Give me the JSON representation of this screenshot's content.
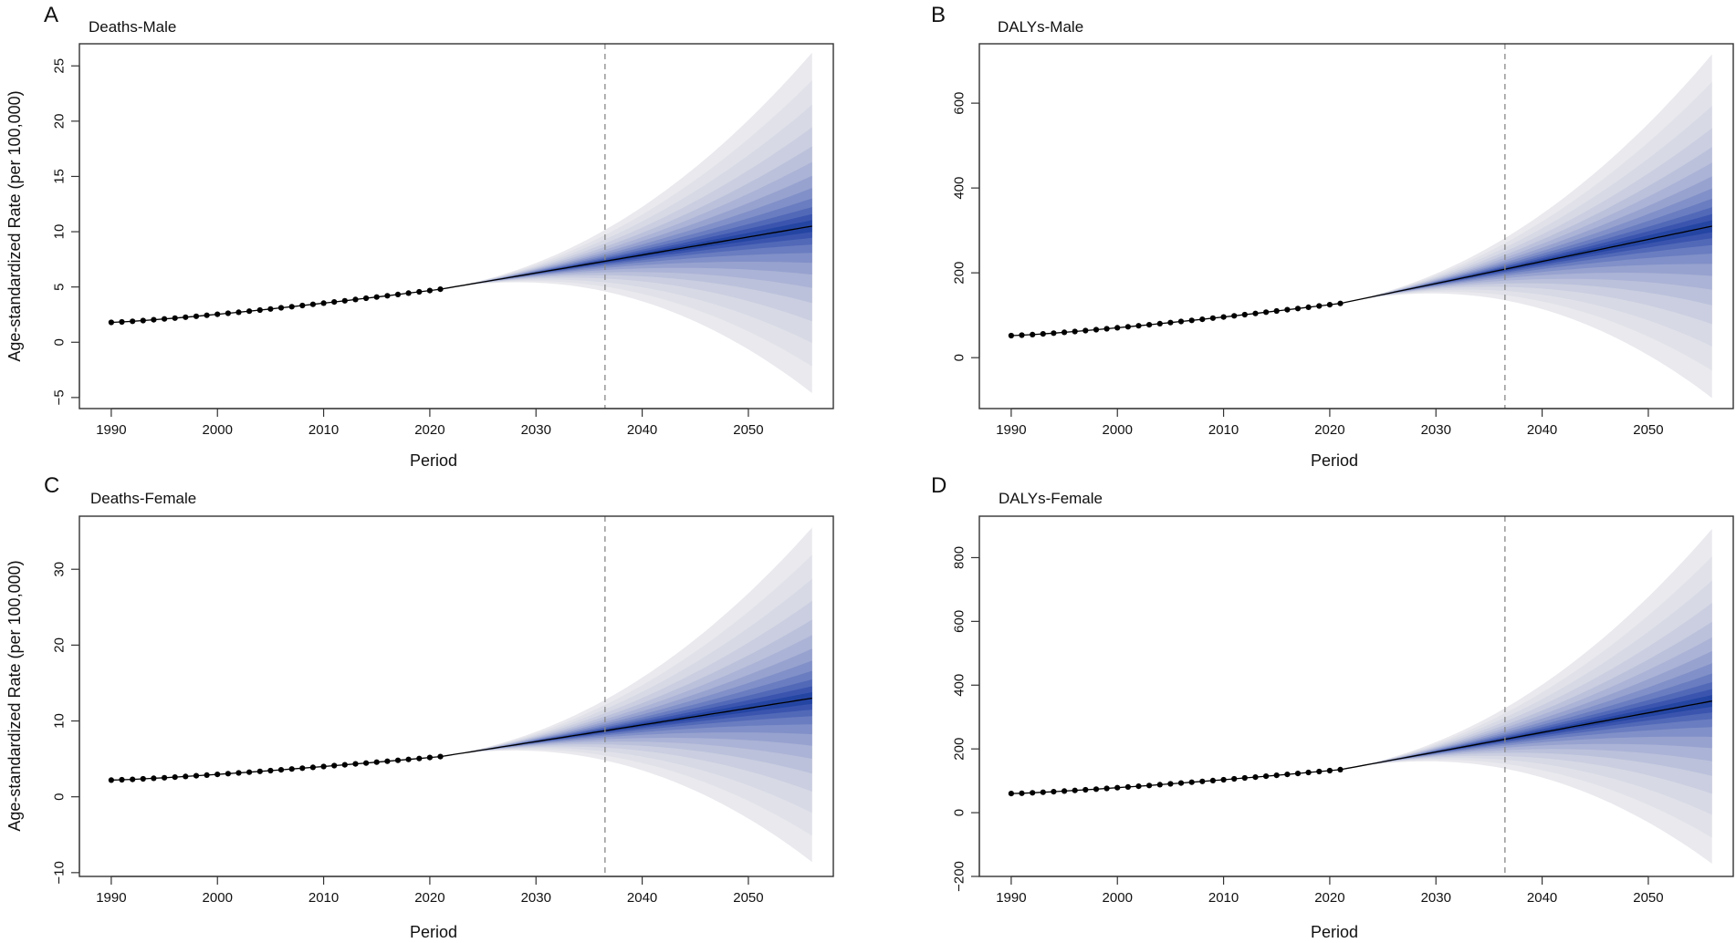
{
  "figure": {
    "x_axis_label": "Period",
    "y_axis_label": "Age-standardized Rate (per 100,000)"
  },
  "chart_data": [
    {
      "type": "line",
      "panel": "A",
      "title": "Deaths-Male",
      "xlabel": "Period",
      "ylabel": "Age-standardized Rate (per 100,000)",
      "xlim": [
        1987,
        2058
      ],
      "ylim": [
        -6,
        27
      ],
      "xticks": [
        1990,
        2000,
        2010,
        2020,
        2030,
        2040,
        2050
      ],
      "yticks": [
        -5,
        0,
        5,
        10,
        15,
        20,
        25
      ],
      "ytick_labels": [
        "−5",
        "0",
        "5",
        "10",
        "15",
        "20",
        "25"
      ],
      "observed": {
        "start_year": 1990,
        "end_year": 2021,
        "start_value": 1.8,
        "end_value": 4.8,
        "curve": 1.25
      },
      "projection": {
        "start_year": 2021,
        "end_year": 2056,
        "start_value": 4.8,
        "end_value": 10.5,
        "band_upper_end": 26.2,
        "band_lower_end": -4.6,
        "band_shape": 2.1
      },
      "vertical_line_year": 2036.5
    },
    {
      "type": "line",
      "panel": "B",
      "title": "DALYs-Male",
      "xlabel": "Period",
      "ylabel": "",
      "xlim": [
        1987,
        2058
      ],
      "ylim": [
        -120,
        740
      ],
      "xticks": [
        1990,
        2000,
        2010,
        2020,
        2030,
        2040,
        2050
      ],
      "yticks": [
        0,
        200,
        400,
        600
      ],
      "ytick_labels": [
        "0",
        "200",
        "400",
        "600"
      ],
      "observed": {
        "start_year": 1990,
        "end_year": 2021,
        "start_value": 52,
        "end_value": 128,
        "curve": 1.25
      },
      "projection": {
        "start_year": 2021,
        "end_year": 2056,
        "start_value": 128,
        "end_value": 310,
        "band_upper_end": 715,
        "band_lower_end": -95,
        "band_shape": 2.1
      },
      "vertical_line_year": 2036.5
    },
    {
      "type": "line",
      "panel": "C",
      "title": "Deaths-Female",
      "xlabel": "Period",
      "ylabel": "Age-standardized Rate (per 100,000)",
      "xlim": [
        1987,
        2058
      ],
      "ylim": [
        -10.5,
        37
      ],
      "xticks": [
        1990,
        2000,
        2010,
        2020,
        2030,
        2040,
        2050
      ],
      "yticks": [
        -10,
        0,
        10,
        20,
        30
      ],
      "ytick_labels": [
        "−10",
        "0",
        "10",
        "20",
        "30"
      ],
      "observed": {
        "start_year": 1990,
        "end_year": 2021,
        "start_value": 2.2,
        "end_value": 5.3,
        "curve": 1.25
      },
      "projection": {
        "start_year": 2021,
        "end_year": 2056,
        "start_value": 5.3,
        "end_value": 13.0,
        "band_upper_end": 35.5,
        "band_lower_end": -8.6,
        "band_shape": 2.1
      },
      "vertical_line_year": 2036.5
    },
    {
      "type": "line",
      "panel": "D",
      "title": "DALYs-Female",
      "xlabel": "Period",
      "ylabel": "",
      "xlim": [
        1987,
        2058
      ],
      "ylim": [
        -200,
        930
      ],
      "xticks": [
        1990,
        2000,
        2010,
        2020,
        2030,
        2040,
        2050
      ],
      "yticks": [
        -200,
        0,
        200,
        400,
        600,
        800
      ],
      "ytick_labels": [
        "−200",
        "0",
        "200",
        "400",
        "600",
        "800"
      ],
      "observed": {
        "start_year": 1990,
        "end_year": 2021,
        "start_value": 60,
        "end_value": 135,
        "curve": 1.25
      },
      "projection": {
        "start_year": 2021,
        "end_year": 2056,
        "start_value": 135,
        "end_value": 350,
        "band_upper_end": 890,
        "band_lower_end": -160,
        "band_shape": 2.1
      },
      "vertical_line_year": 2036.5
    }
  ]
}
